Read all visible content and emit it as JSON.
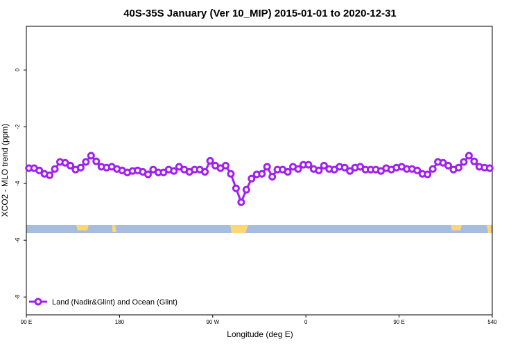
{
  "chart_data": {
    "type": "line",
    "title": "40S-35S January (Ver 10_MIP)   2015-01-01 to 2020-12-31",
    "x_label": "Longitude (deg E)",
    "y_label": "XCO2 - MLO trend (ppm)",
    "x": [
      92.5,
      97.5,
      102.5,
      107.5,
      112.5,
      117.5,
      122.5,
      127.5,
      132.5,
      137.5,
      142.5,
      147.5,
      152.5,
      157.5,
      162.5,
      167.5,
      172.5,
      177.5,
      182.5,
      187.5,
      192.5,
      197.5,
      202.5,
      207.5,
      212.5,
      217.5,
      222.5,
      227.5,
      232.5,
      237.5,
      242.5,
      247.5,
      252.5,
      257.5,
      262.5,
      267.5,
      272.5,
      277.5,
      282.5,
      287.5,
      292.5,
      297.5,
      302.5,
      307.5,
      312.5,
      317.5,
      322.5,
      327.5,
      332.5,
      337.5,
      342.5,
      347.5,
      352.5,
      357.5,
      362.5,
      367.5,
      372.5,
      377.5,
      382.5,
      387.5,
      392.5,
      397.5,
      402.5,
      407.5,
      412.5,
      417.5,
      422.5,
      427.5,
      432.5,
      437.5,
      442.5,
      447.5,
      452.5,
      457.5,
      462.5,
      467.5,
      472.5,
      477.5,
      482.5,
      487.5,
      492.5,
      497.5,
      502.5,
      507.5,
      512.5,
      517.5,
      522.5,
      527.5,
      532.5,
      537.5
    ],
    "series": [
      {
        "name": "Land (Nadir&Glint) and Ocean (Glint)",
        "color": "#a020f0",
        "values": [
          -3.46,
          -3.46,
          -3.54,
          -3.66,
          -3.71,
          -3.49,
          -3.24,
          -3.27,
          -3.37,
          -3.51,
          -3.44,
          -3.24,
          -3.02,
          -3.22,
          -3.41,
          -3.44,
          -3.41,
          -3.49,
          -3.54,
          -3.61,
          -3.56,
          -3.54,
          -3.59,
          -3.68,
          -3.51,
          -3.61,
          -3.61,
          -3.51,
          -3.56,
          -3.41,
          -3.51,
          -3.59,
          -3.51,
          -3.51,
          -3.59,
          -3.2,
          -3.37,
          -3.46,
          -3.37,
          -3.66,
          -4.17,
          -4.66,
          -4.22,
          -3.83,
          -3.68,
          -3.66,
          -3.41,
          -3.76,
          -3.51,
          -3.51,
          -3.59,
          -3.41,
          -3.49,
          -3.34,
          -3.34,
          -3.49,
          -3.54,
          -3.37,
          -3.49,
          -3.51,
          -3.41,
          -3.44,
          -3.56,
          -3.44,
          -3.41,
          -3.51,
          -3.51,
          -3.51,
          -3.56,
          -3.46,
          -3.51,
          -3.44,
          -3.41,
          -3.49,
          -3.49,
          -3.54,
          -3.66,
          -3.68,
          -3.49,
          -3.24,
          -3.27,
          -3.37,
          -3.51,
          -3.44,
          -3.24,
          -3.02,
          -3.22,
          -3.41,
          -3.44,
          -3.46
        ]
      }
    ],
    "xlim": [
      90,
      540
    ],
    "xticks": [
      {
        "value": 90,
        "label": "90 E"
      },
      180,
      {
        "value": 270,
        "label": "90 W"
      },
      {
        "value": 360,
        "label": "0"
      },
      {
        "value": 450,
        "label": "90 E"
      },
      540
    ],
    "ylim": [
      -8.63,
      1.54
    ],
    "yticks": [
      0,
      -2,
      -4,
      -6,
      -8
    ]
  }
}
